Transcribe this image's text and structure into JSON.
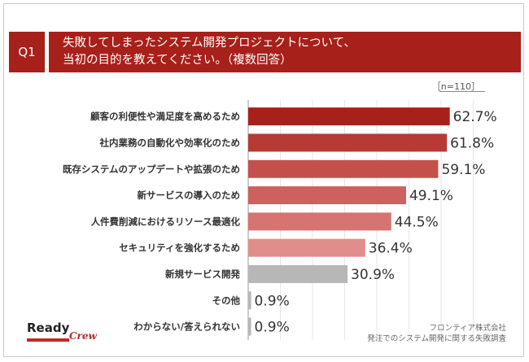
{
  "header": {
    "badge": "Q1",
    "title_line1": "失敗してしまったシステム開発プロジェクトについて、",
    "title_line2": "当初の目的を教えてください。（複数回答）"
  },
  "sample_label": "［n=110］",
  "chart_data": {
    "type": "bar",
    "orientation": "horizontal",
    "categories": [
      "顧客の利便性や満足度を高めるため",
      "社内業務の自動化や効率化のため",
      "既存システムのアップデートや拡張のため",
      "新サービスの導入のため",
      "人件費削減におけるリソース最適化",
      "セキュリティを強化するため",
      "新規サービス開発",
      "その他",
      "わからない/答えられない"
    ],
    "values": [
      62.7,
      61.8,
      59.1,
      49.1,
      44.5,
      36.4,
      30.9,
      0.9,
      0.9
    ],
    "value_labels": [
      "62.7%",
      "61.8%",
      "59.1%",
      "49.1%",
      "44.5%",
      "36.4%",
      "30.9%",
      "0.9%",
      "0.9%"
    ],
    "colors": [
      "#a8201a",
      "#b83a34",
      "#c4504b",
      "#cd615d",
      "#d57471",
      "#df8e8c",
      "#b7b7b7",
      "#b7b7b7",
      "#b7b7b7"
    ],
    "xlim": [
      0,
      100
    ],
    "grid": true
  },
  "footer": {
    "logo_main": "Ready",
    "logo_script": "Crew",
    "source_line1": "フロンティア株式会社",
    "source_line2": "発注でのシステム開発に関する失敗調査"
  }
}
